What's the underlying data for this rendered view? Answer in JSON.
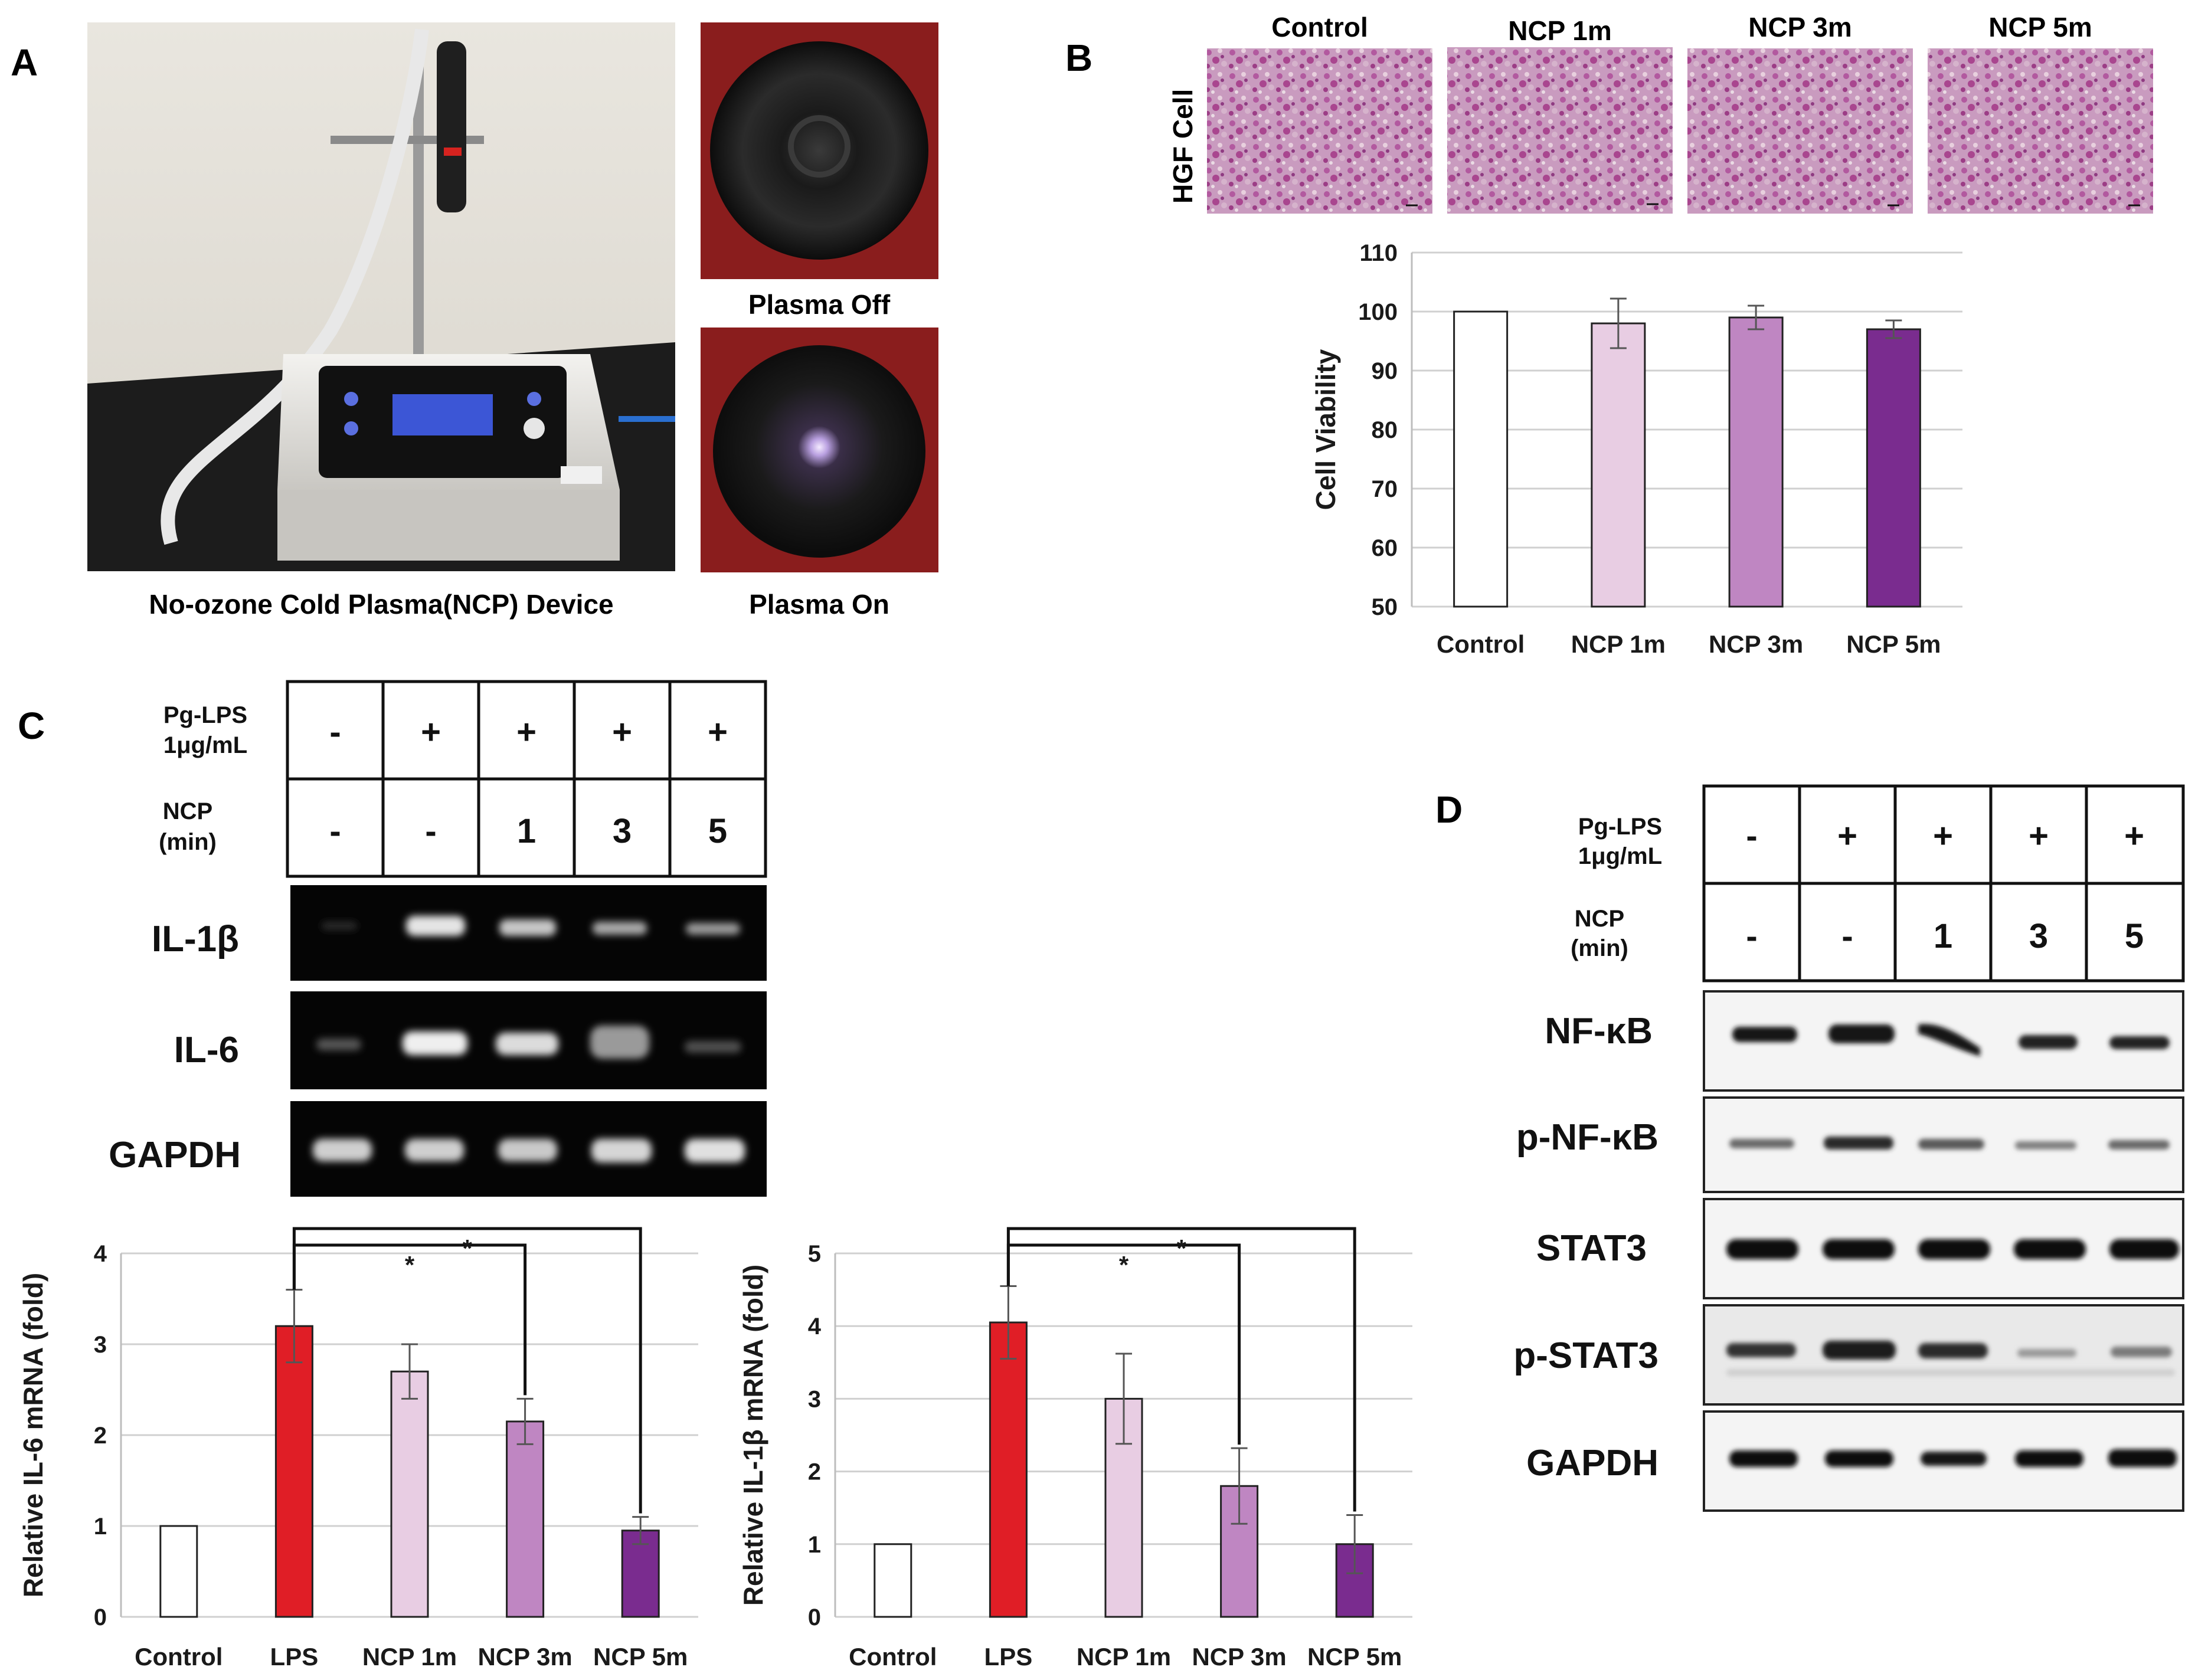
{
  "panels": {
    "a": {
      "letter": "A",
      "device_caption": "No-ozone Cold Plasma(NCP) Device",
      "plasma_off": "Plasma Off",
      "plasma_on": "Plasma On"
    },
    "b": {
      "letter": "B",
      "row_label": "HGF Cell",
      "image_titles": [
        "Control",
        "NCP 1m",
        "NCP 3m",
        "NCP 5m"
      ]
    },
    "c": {
      "letter": "C",
      "table": {
        "row1_label": [
          "Pg-LPS",
          "1μg/mL"
        ],
        "row2_label": [
          "NCP",
          "(min)"
        ],
        "row1": [
          "-",
          "+",
          "+",
          "+",
          "+"
        ],
        "row2": [
          "-",
          "-",
          "1",
          "3",
          "5"
        ]
      },
      "genes": [
        "IL-1β",
        "IL-6",
        "GAPDH"
      ]
    },
    "d": {
      "letter": "D",
      "table": {
        "row1_label": [
          "Pg-LPS",
          "1μg/mL"
        ],
        "row2_label": [
          "NCP",
          "(min)"
        ],
        "row1": [
          "-",
          "+",
          "+",
          "+",
          "+"
        ],
        "row2": [
          "-",
          "-",
          "1",
          "3",
          "5"
        ]
      },
      "proteins": [
        "NF-κB",
        "p-NF-κB",
        "STAT3",
        "p-STAT3",
        "GAPDH"
      ]
    }
  },
  "colors": {
    "control": "#ffffff",
    "lps": "#e01e26",
    "ncp1": "#e8cde3",
    "ncp3": "#bf86c2",
    "ncp5": "#7a2c8f"
  },
  "chart_data": [
    {
      "id": "cell-viability",
      "type": "bar",
      "categories": [
        "Control",
        "NCP 1m",
        "NCP 3m",
        "NCP 5m"
      ],
      "values": [
        100,
        98,
        99,
        97
      ],
      "errors": [
        0,
        4.2,
        2,
        1.5
      ],
      "ylabel": "Cell Viability",
      "ylim": [
        50,
        110
      ],
      "yticks": [
        50,
        60,
        70,
        80,
        90,
        100,
        110
      ],
      "grid": true,
      "colors": [
        "#ffffff",
        "#e8cde3",
        "#bf86c2",
        "#7a2c8f"
      ]
    },
    {
      "id": "il6-mrna",
      "type": "bar",
      "categories": [
        "Control",
        "LPS",
        "NCP 1m",
        "NCP 3m",
        "NCP 5m"
      ],
      "values": [
        1,
        3.2,
        2.7,
        2.15,
        0.95
      ],
      "errors": [
        0,
        0.4,
        0.3,
        0.25,
        0.15
      ],
      "ylabel": "Relative IL-6 mRNA (fold)",
      "ylim": [
        0,
        4
      ],
      "yticks": [
        0,
        1,
        2,
        3,
        4
      ],
      "grid": true,
      "significance": [
        {
          "from": "LPS",
          "to": "NCP 3m",
          "label": "*"
        },
        {
          "from": "LPS",
          "to": "NCP 5m",
          "label": "*"
        }
      ],
      "colors": [
        "#ffffff",
        "#e01e26",
        "#e8cde3",
        "#bf86c2",
        "#7a2c8f"
      ]
    },
    {
      "id": "il1b-mrna",
      "type": "bar",
      "categories": [
        "Control",
        "LPS",
        "NCP 1m",
        "NCP 3m",
        "NCP 5m"
      ],
      "values": [
        1,
        4.05,
        3.0,
        1.8,
        1.0
      ],
      "errors": [
        0,
        0.5,
        0.62,
        0.52,
        0.4
      ],
      "ylabel": "Relative IL-1β mRNA (fold)",
      "ylim": [
        0,
        5
      ],
      "yticks": [
        0,
        1,
        2,
        3,
        4,
        5
      ],
      "grid": true,
      "significance": [
        {
          "from": "LPS",
          "to": "NCP 3m",
          "label": "*"
        },
        {
          "from": "LPS",
          "to": "NCP 5m",
          "label": "*"
        }
      ],
      "colors": [
        "#ffffff",
        "#e01e26",
        "#e8cde3",
        "#bf86c2",
        "#7a2c8f"
      ]
    }
  ]
}
